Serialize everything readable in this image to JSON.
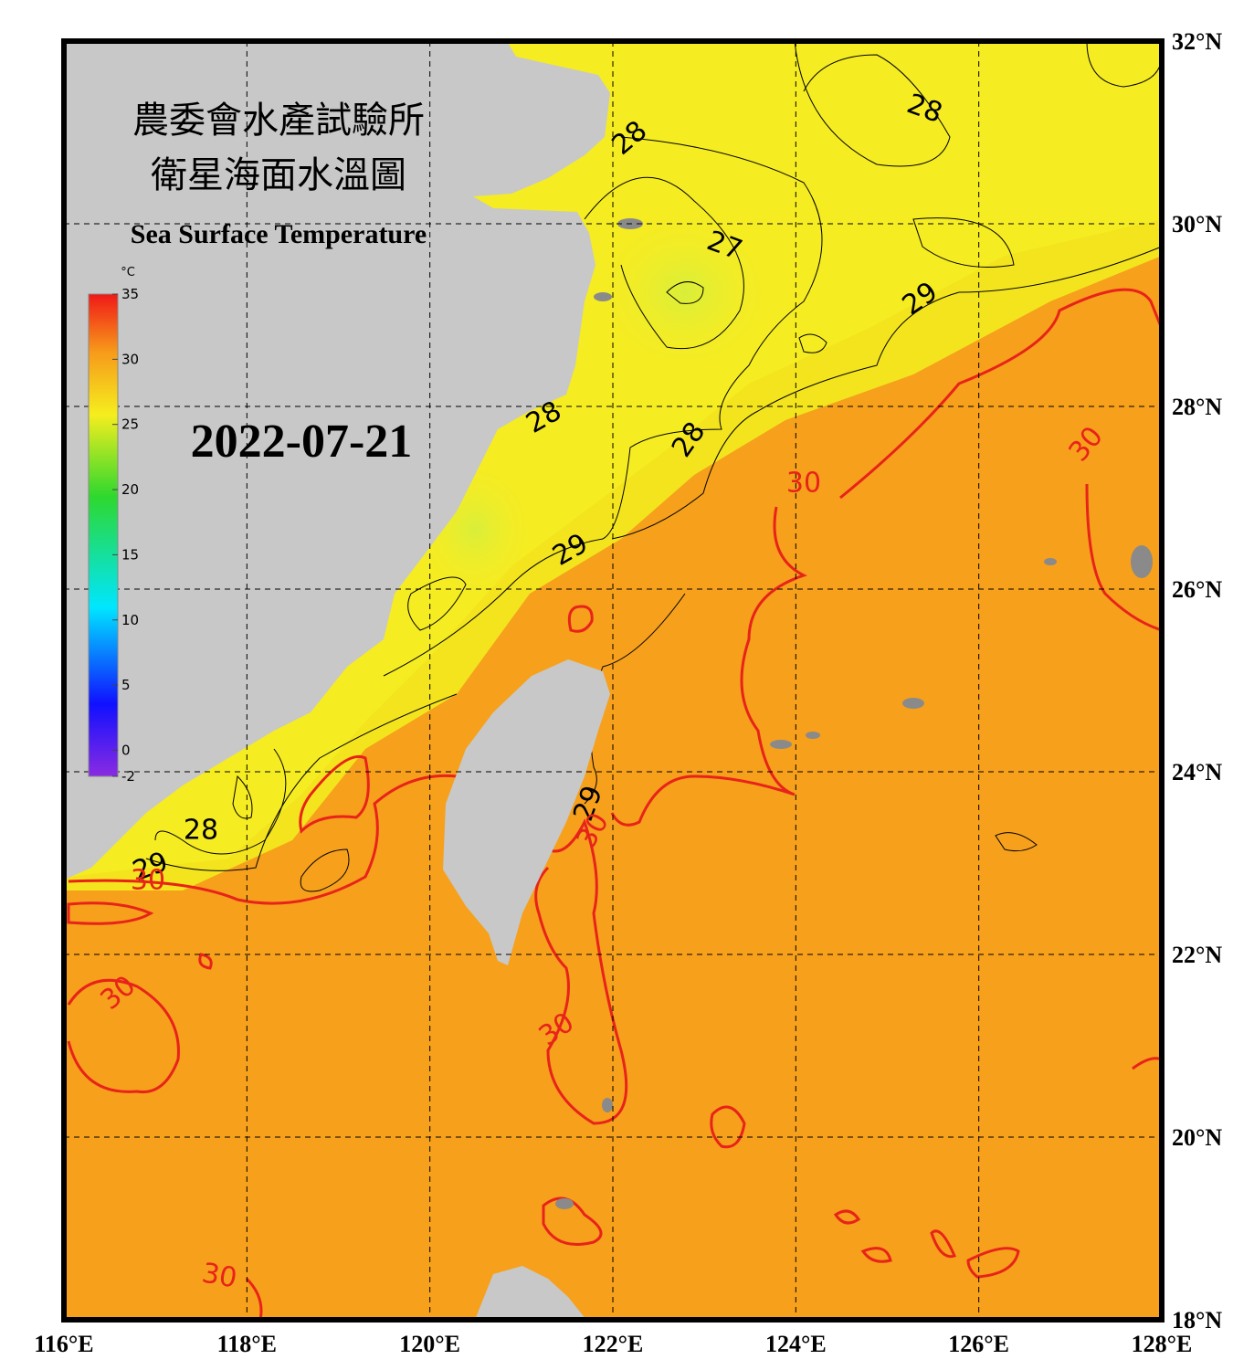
{
  "header": {
    "title_line1": "農委會水產試驗所",
    "title_line2": "衛星海面水溫圖",
    "title_en": "Sea Surface Temperature",
    "date": "2022-07-21"
  },
  "colorbar": {
    "unit": "°C",
    "range": [
      -2,
      35
    ],
    "ticks": [
      -2,
      0,
      5,
      10,
      15,
      20,
      25,
      30,
      35
    ]
  },
  "map": {
    "lon_range": [
      116,
      128
    ],
    "lat_range": [
      18,
      32
    ],
    "lon_ticks": [
      {
        "value": 116,
        "label": "116°E"
      },
      {
        "value": 118,
        "label": "118°E"
      },
      {
        "value": 120,
        "label": "120°E"
      },
      {
        "value": 122,
        "label": "122°E"
      },
      {
        "value": 124,
        "label": "124°E"
      },
      {
        "value": 126,
        "label": "126°E"
      },
      {
        "value": 128,
        "label": "128°E"
      }
    ],
    "lat_ticks": [
      {
        "value": 18,
        "label": "18°N"
      },
      {
        "value": 20,
        "label": "20°N"
      },
      {
        "value": 22,
        "label": "22°N"
      },
      {
        "value": 24,
        "label": "24°N"
      },
      {
        "value": 26,
        "label": "26°N"
      },
      {
        "value": 28,
        "label": "28°N"
      },
      {
        "value": 30,
        "label": "30°N"
      },
      {
        "value": 32,
        "label": "32°N"
      }
    ],
    "contour_labels": [
      {
        "label": 28,
        "color": "#000000"
      },
      {
        "label": 28,
        "color": "#000000"
      },
      {
        "label": 27,
        "color": "#000000"
      },
      {
        "label": 29,
        "color": "#000000"
      },
      {
        "label": 28,
        "color": "#000000"
      },
      {
        "label": 28,
        "color": "#000000"
      },
      {
        "label": 29,
        "color": "#000000"
      },
      {
        "label": 30,
        "color": "#e8231a"
      },
      {
        "label": 30,
        "color": "#e8231a"
      },
      {
        "label": 28,
        "color": "#000000"
      },
      {
        "label": 29,
        "color": "#000000"
      },
      {
        "label": 30,
        "color": "#e8231a"
      },
      {
        "label": 29,
        "color": "#000000"
      },
      {
        "label": 30,
        "color": "#e8231a"
      },
      {
        "label": 30,
        "color": "#e8231a"
      },
      {
        "label": 30,
        "color": "#e8231a"
      },
      {
        "label": 30,
        "color": "#e8231a"
      }
    ]
  }
}
